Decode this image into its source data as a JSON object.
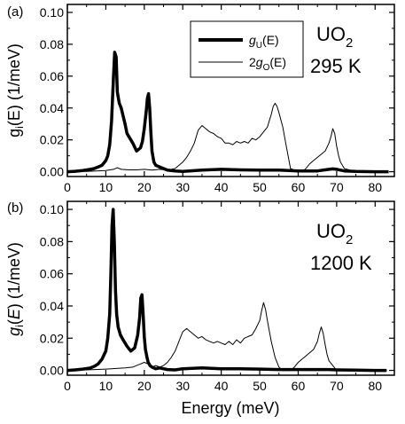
{
  "chart_data": [
    {
      "type": "line",
      "panel": "(a)",
      "material": "UO",
      "material_sub": "2",
      "temperature": "295 K",
      "xlim": [
        0,
        85
      ],
      "ylim": [
        -0.003,
        0.105
      ],
      "xticks": [
        0,
        10,
        20,
        30,
        40,
        50,
        60,
        70,
        80
      ],
      "yticks": [
        0.0,
        0.02,
        0.04,
        0.06,
        0.08,
        0.1
      ],
      "ytick_labels": [
        "0.00",
        "0.02",
        "0.04",
        "0.06",
        "0.08",
        "0.10"
      ],
      "legend": {
        "position": "top-center",
        "entries": [
          {
            "prefix": "",
            "italic": "g",
            "sub": "U",
            "suffix": "(E)",
            "weight": "thick"
          },
          {
            "prefix": "2",
            "italic": "g",
            "sub": "O",
            "suffix": "(E)",
            "weight": "thin"
          }
        ]
      },
      "series": [
        {
          "name": "gU(E)",
          "weight": "thick",
          "x": [
            0,
            2,
            4,
            6,
            7,
            8,
            9,
            10,
            10.5,
            11,
            11.5,
            12,
            12.3,
            12.7,
            13,
            13.5,
            14,
            14.5,
            15,
            15.5,
            16,
            17,
            18,
            19,
            19.5,
            20,
            20.5,
            20.8,
            21.1,
            21.4,
            21.7,
            22,
            22.5,
            23,
            24,
            25,
            26,
            28,
            30,
            35,
            40,
            45,
            50,
            55,
            60,
            65,
            68,
            69,
            70,
            72,
            75,
            80,
            83.5
          ],
          "y": [
            0.0,
            0.0003,
            0.0008,
            0.0015,
            0.002,
            0.003,
            0.004,
            0.007,
            0.01,
            0.017,
            0.032,
            0.06,
            0.075,
            0.072,
            0.05,
            0.043,
            0.04,
            0.035,
            0.03,
            0.024,
            0.022,
            0.018,
            0.013,
            0.015,
            0.019,
            0.027,
            0.038,
            0.046,
            0.049,
            0.04,
            0.025,
            0.013,
            0.006,
            0.004,
            0.003,
            0.002,
            0.001,
            0.0005,
            0.0002,
            0.001,
            0.0015,
            0.0012,
            0.001,
            0.001,
            0.0005,
            0.0005,
            0.0015,
            0.0018,
            0.0015,
            0.0005,
            0.0002,
            0.0,
            0.0
          ]
        },
        {
          "name": "2gO(E)",
          "weight": "thin",
          "x": [
            0,
            5,
            10,
            12,
            13,
            14,
            16,
            18,
            20,
            22,
            24,
            26,
            27,
            28,
            29,
            30,
            31,
            32,
            33,
            34,
            35,
            36,
            37,
            38,
            39,
            40,
            41,
            42,
            43,
            44,
            45,
            46,
            47,
            48,
            49,
            50,
            51,
            52,
            53,
            53.5,
            54,
            54.5,
            55,
            56,
            57,
            58,
            60,
            61,
            62,
            63,
            64,
            65,
            66,
            67,
            68,
            68.5,
            69,
            69.5,
            70,
            70.5,
            71,
            72,
            75,
            80,
            83.5
          ],
          "y": [
            0,
            0.0002,
            0.0008,
            0.0015,
            0.0025,
            0.0015,
            0.0012,
            0.0012,
            0.0015,
            0.001,
            0.0015,
            0.001,
            0.0015,
            0.002,
            0.004,
            0.006,
            0.009,
            0.013,
            0.018,
            0.026,
            0.029,
            0.027,
            0.025,
            0.024,
            0.022,
            0.021,
            0.018,
            0.018,
            0.017,
            0.019,
            0.018,
            0.019,
            0.018,
            0.021,
            0.02,
            0.022,
            0.025,
            0.028,
            0.036,
            0.041,
            0.043,
            0.041,
            0.037,
            0.028,
            0.015,
            0.002,
            0.0,
            0.0,
            0.002,
            0.005,
            0.007,
            0.009,
            0.011,
            0.013,
            0.018,
            0.022,
            0.027,
            0.024,
            0.016,
            0.01,
            0.006,
            0.002,
            0.0,
            0.0,
            0.0
          ]
        }
      ]
    },
    {
      "type": "line",
      "panel": "(b)",
      "material": "UO",
      "material_sub": "2",
      "temperature": "1200 K",
      "xlim": [
        0,
        85
      ],
      "ylim": [
        -0.003,
        0.105
      ],
      "xticks": [
        0,
        10,
        20,
        30,
        40,
        50,
        60,
        70,
        80
      ],
      "yticks": [
        0.0,
        0.02,
        0.04,
        0.06,
        0.08,
        0.1
      ],
      "ytick_labels": [
        "0.00",
        "0.02",
        "0.04",
        "0.06",
        "0.08",
        "0.10"
      ],
      "series": [
        {
          "name": "gU(E)",
          "weight": "thick",
          "x": [
            0,
            2,
            4,
            6,
            7,
            8,
            9,
            10,
            10.5,
            11,
            11.3,
            11.6,
            11.9,
            12.2,
            12.5,
            12.8,
            13.2,
            13.8,
            14.5,
            15.5,
            16.5,
            17.5,
            18.3,
            18.8,
            19.1,
            19.4,
            19.7,
            20,
            20.3,
            20.7,
            21,
            21.5,
            22,
            23,
            24,
            25,
            26,
            28,
            30,
            35,
            40,
            45,
            50,
            55,
            60,
            65,
            68,
            70,
            75,
            80,
            83
          ],
          "y": [
            0.0,
            0.0003,
            0.0008,
            0.0015,
            0.0025,
            0.004,
            0.007,
            0.012,
            0.02,
            0.035,
            0.06,
            0.09,
            0.1,
            0.08,
            0.05,
            0.035,
            0.027,
            0.022,
            0.019,
            0.015,
            0.012,
            0.014,
            0.022,
            0.033,
            0.045,
            0.047,
            0.035,
            0.021,
            0.013,
            0.008,
            0.005,
            0.003,
            0.002,
            0.001,
            0.0015,
            0.001,
            0.0005,
            0.0003,
            0.001,
            0.0015,
            0.001,
            0.001,
            0.0008,
            0.0005,
            0.0005,
            0.0005,
            0.0005,
            0.0003,
            0.0002,
            0.0,
            0.0
          ]
        },
        {
          "name": "2gO(E)",
          "weight": "thin",
          "x": [
            0,
            5,
            10,
            15,
            17,
            18,
            19,
            20,
            21,
            22,
            23,
            24,
            25,
            26,
            27,
            28,
            29,
            30,
            31,
            32,
            33,
            34,
            35,
            36,
            37,
            38,
            39,
            40,
            41,
            42,
            43,
            44,
            45,
            46,
            47,
            48,
            49,
            50,
            50.5,
            51,
            51.5,
            52,
            53,
            54,
            55,
            56,
            58,
            59,
            60,
            61,
            62,
            63,
            64,
            65,
            65.5,
            66,
            66.5,
            67,
            67.5,
            68,
            69,
            70,
            75,
            80,
            83
          ],
          "y": [
            0,
            0.0003,
            0.0008,
            0.0015,
            0.002,
            0.003,
            0.004,
            0.005,
            0.004,
            0.002,
            0.003,
            0.002,
            0.003,
            0.005,
            0.008,
            0.012,
            0.018,
            0.024,
            0.026,
            0.024,
            0.022,
            0.02,
            0.021,
            0.019,
            0.018,
            0.017,
            0.018,
            0.017,
            0.016,
            0.018,
            0.016,
            0.019,
            0.017,
            0.02,
            0.021,
            0.022,
            0.026,
            0.031,
            0.037,
            0.042,
            0.038,
            0.031,
            0.018,
            0.008,
            0.002,
            0.0,
            0.0,
            0.002,
            0.005,
            0.007,
            0.009,
            0.011,
            0.013,
            0.018,
            0.023,
            0.027,
            0.023,
            0.016,
            0.01,
            0.006,
            0.003,
            0.0,
            0.0,
            0.0,
            0.0
          ]
        }
      ]
    }
  ],
  "axes": {
    "xlabel": "Energy (meV)",
    "ylabel_a": {
      "base": "g",
      "sub": "i",
      "rest": "(E) (1/meV)"
    },
    "ylabel_b": {
      "base": "g",
      "sub": "i",
      "rest_pre": "(",
      "rest_italic": "E",
      "rest_post": ") (1/meV)"
    }
  }
}
